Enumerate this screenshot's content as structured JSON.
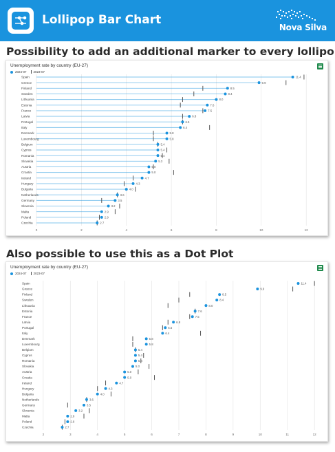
{
  "header": {
    "title": "Lollipop Bar Chart",
    "brand": "Nova Silva",
    "app_icon": "graph-nodes-icon",
    "bg_color": "#1a93de"
  },
  "sections": [
    {
      "title": "Possibility to add an additional marker to every lollipop"
    },
    {
      "title": "Also possible to use this as a Dot Plot"
    }
  ],
  "chart_data": [
    {
      "type": "lollipop",
      "title": "Unemployment rate by country (EU-27)",
      "legend": [
        "2024-07",
        "2023-07"
      ],
      "legend_placement": "top-left",
      "xlim": [
        0,
        12.3
      ],
      "xticks": [
        0,
        2,
        4,
        6,
        8,
        10,
        12
      ],
      "grid": true,
      "accent_color": "#1a93de",
      "marker_color": "#555555",
      "categories": [
        "Spain",
        "Greece",
        "Finland",
        "Sweden",
        "Lithuania",
        "Estonia",
        "France",
        "Latvia",
        "Portugal",
        "Italy",
        "Denmark",
        "Luxembourg",
        "Belgium",
        "Cyprus",
        "Romania",
        "Slovakia",
        "Austria",
        "Croatia",
        "Ireland",
        "Hungary",
        "Bulgaria",
        "Netherlands",
        "Germany",
        "Slovenia",
        "Malta",
        "Poland",
        "Czechia"
      ],
      "series": [
        {
          "name": "2024-07",
          "values": [
            11.4,
            9.9,
            8.5,
            8.4,
            8.0,
            7.6,
            7.5,
            6.8,
            6.5,
            6.4,
            5.8,
            5.8,
            5.4,
            5.4,
            5.4,
            5.3,
            5.0,
            5.0,
            4.7,
            4.3,
            4.0,
            3.6,
            3.5,
            3.2,
            2.9,
            2.9,
            2.7
          ]
        },
        {
          "name": "2023-07",
          "values": [
            11.9,
            11.1,
            7.4,
            7.0,
            6.5,
            6.4,
            7.4,
            6.5,
            6.5,
            7.7,
            5.2,
            5.2,
            5.4,
            5.8,
            5.6,
            5.9,
            5.2,
            6.1,
            4.3,
            3.9,
            4.4,
            3.6,
            2.9,
            3.7,
            3.5,
            2.8,
            2.7
          ]
        }
      ],
      "data_labels": [
        "11.4",
        "9.9",
        "8.5",
        "8.4",
        "8.0",
        "7.6",
        "7.5",
        "6.8",
        "6.5",
        "6.4",
        "5.8",
        "5.8",
        "5.4",
        "5.4",
        "5.4",
        "5.3",
        "5.0",
        "5.0",
        "4.7",
        "4.3",
        "4.0",
        "3.6",
        "3.5",
        "3.2",
        "2.9",
        "2.9",
        "2.7"
      ]
    },
    {
      "type": "dot",
      "title": "Unemployment rate by country (EU-27)",
      "legend": [
        "2024-07",
        "2023-07"
      ],
      "legend_placement": "top-left",
      "xlim": [
        1.75,
        12.25
      ],
      "xticks": [
        2,
        3,
        4,
        5,
        6,
        7,
        8,
        9,
        10,
        11,
        12
      ],
      "grid": true,
      "accent_color": "#1a93de",
      "marker_color": "#555555",
      "categories": [
        "Spain",
        "Greece",
        "Finland",
        "Sweden",
        "Lithuania",
        "Estonia",
        "France",
        "Latvia",
        "Portugal",
        "Italy",
        "Denmark",
        "Luxembourg",
        "Belgium",
        "Cyprus",
        "Romania",
        "Slovakia",
        "Austria",
        "Croatia",
        "Ireland",
        "Hungary",
        "Bulgaria",
        "Netherlands",
        "Germany",
        "Slovenia",
        "Malta",
        "Poland",
        "Czechia"
      ],
      "series": [
        {
          "name": "2024-07",
          "values": [
            11.4,
            9.9,
            8.5,
            8.4,
            8.0,
            7.6,
            7.5,
            6.8,
            6.5,
            6.4,
            5.8,
            5.8,
            5.4,
            5.4,
            5.4,
            5.3,
            5.0,
            5.0,
            4.7,
            4.3,
            4.0,
            3.6,
            3.5,
            3.2,
            2.9,
            2.9,
            2.7
          ]
        },
        {
          "name": "2023-07",
          "values": [
            12.0,
            11.2,
            7.4,
            7.0,
            6.6,
            7.6,
            7.4,
            6.6,
            6.4,
            7.8,
            5.3,
            5.3,
            5.4,
            5.7,
            5.6,
            5.9,
            5.5,
            6.1,
            4.3,
            4.0,
            4.5,
            3.6,
            2.9,
            3.7,
            3.5,
            2.8,
            2.7
          ]
        }
      ],
      "data_labels": [
        "11.4",
        "9.9",
        "8.5",
        "8.4",
        "8.0",
        "7.6",
        "7.5",
        "6.8",
        "6.5",
        "6.4",
        "5.8",
        "5.8",
        "5.4",
        "5.4",
        "5.4",
        "5.3",
        "5.0",
        "5.0",
        "4.7",
        "4.3",
        "4.0",
        "3.6",
        "3.5",
        "3.2",
        "2.9",
        "2.9",
        "2.7"
      ]
    }
  ]
}
